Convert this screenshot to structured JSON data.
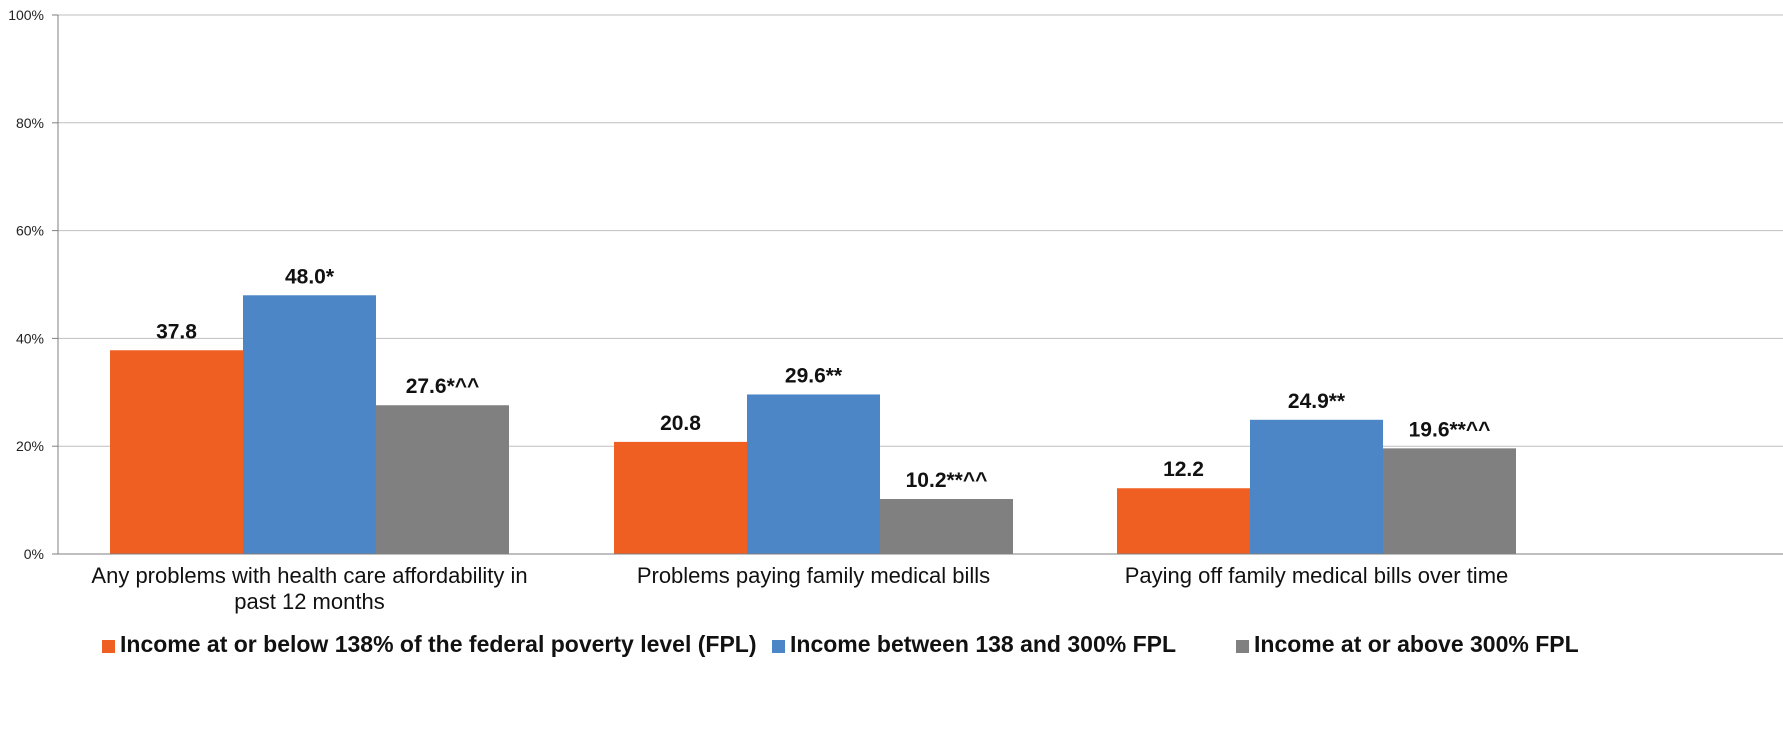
{
  "chart_data": {
    "type": "bar",
    "categories": [
      "Any problems with health care affordability in past 12 months",
      "Problems paying family medical bills",
      "Paying off family medical bills over time"
    ],
    "series": [
      {
        "name": "Income at or below 138% of the federal poverty level (FPL)",
        "color": "#F05F22",
        "values": [
          37.8,
          20.8,
          12.2
        ],
        "labels": [
          "37.8",
          "20.8",
          "12.2"
        ]
      },
      {
        "name": "Income between 138 and 300% FPL",
        "color": "#4D86C6",
        "values": [
          48.0,
          29.6,
          24.9
        ],
        "labels": [
          "48.0*",
          "29.6**",
          "24.9**"
        ]
      },
      {
        "name": "Income at or above 300% FPL",
        "color": "#808080",
        "values": [
          27.6,
          10.2,
          19.6
        ],
        "labels": [
          "27.6*^^",
          "10.2**^^",
          "19.6**^^"
        ]
      }
    ],
    "y_ticks": [
      "0%",
      "20%",
      "40%",
      "60%",
      "80%",
      "100%"
    ],
    "ylim": [
      0,
      100
    ],
    "grid": true,
    "legend_position": "bottom"
  }
}
